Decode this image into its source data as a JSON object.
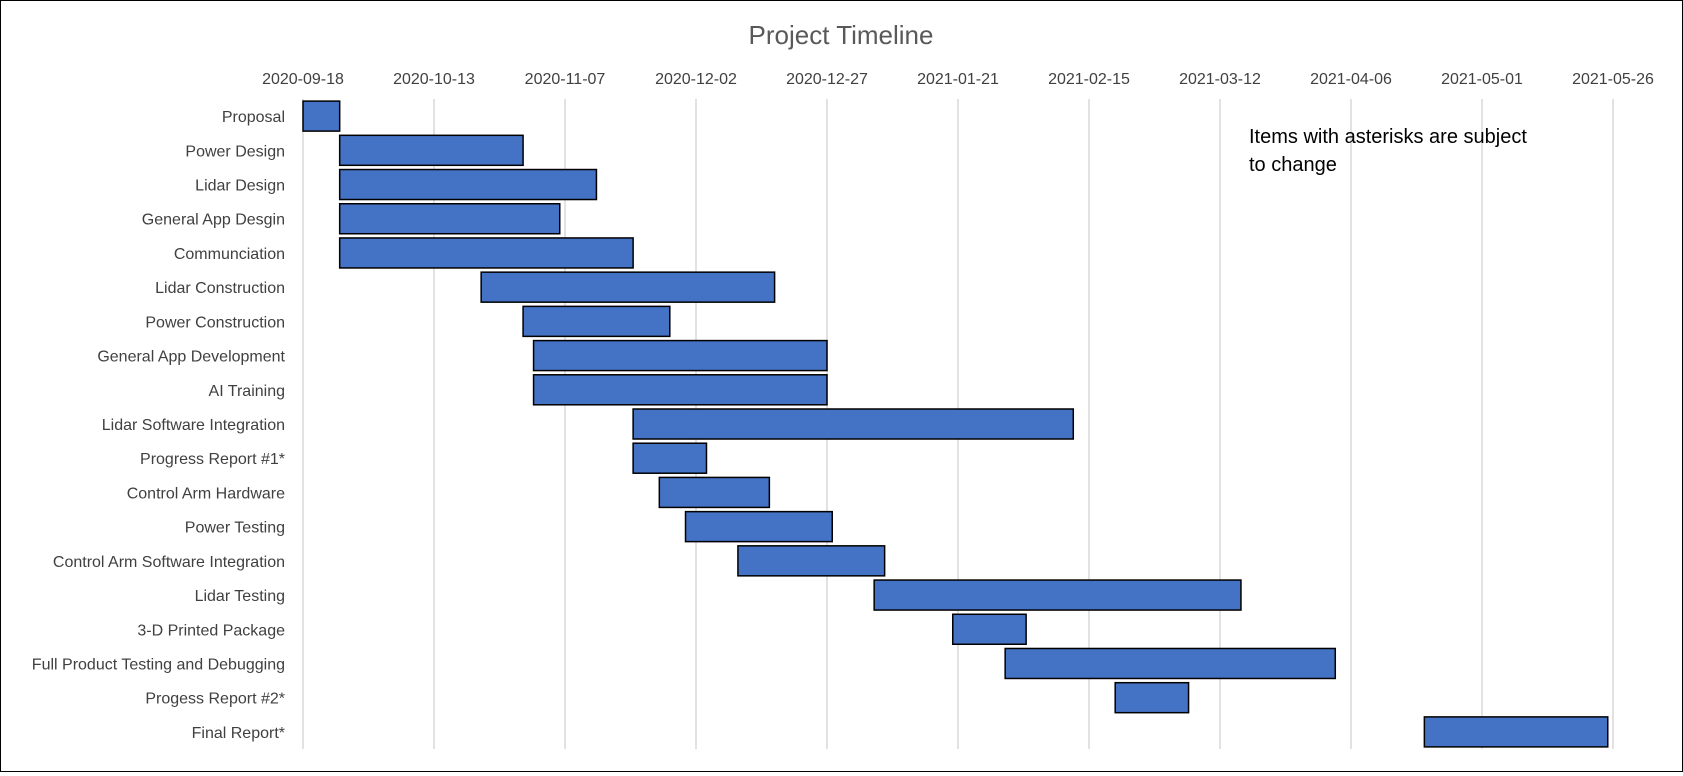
{
  "chart_data": {
    "type": "bar",
    "orientation": "horizontal",
    "style": "gantt",
    "title": "Project Timeline",
    "annotation": "Items with asterisks are subject to change",
    "x_axis": {
      "type": "date",
      "position": "top",
      "range": [
        "2020-09-18",
        "2021-05-26"
      ],
      "ticks": [
        "2020-09-18",
        "2020-10-13",
        "2020-11-07",
        "2020-12-02",
        "2020-12-27",
        "2021-01-21",
        "2021-02-15",
        "2021-03-12",
        "2021-04-06",
        "2021-05-01",
        "2021-05-26"
      ]
    },
    "grid": true,
    "bar_color": "#4472c4",
    "tasks": [
      {
        "name": "Proposal",
        "start": "2020-09-18",
        "end": "2020-09-25"
      },
      {
        "name": "Power Design",
        "start": "2020-09-25",
        "end": "2020-10-30"
      },
      {
        "name": "Lidar Design ",
        "start": "2020-09-25",
        "end": "2020-11-13"
      },
      {
        "name": "General App Desgin",
        "start": "2020-09-25",
        "end": "2020-11-06"
      },
      {
        "name": "Communciation",
        "start": "2020-09-25",
        "end": "2020-11-20"
      },
      {
        "name": "Lidar Construction",
        "start": "2020-10-22",
        "end": "2020-12-17"
      },
      {
        "name": "Power Construction",
        "start": "2020-10-30",
        "end": "2020-11-27"
      },
      {
        "name": "General App Development",
        "start": "2020-11-01",
        "end": "2020-12-27"
      },
      {
        "name": "AI Training ",
        "start": "2020-11-01",
        "end": "2020-12-27"
      },
      {
        "name": "Lidar Software Integration",
        "start": "2020-11-20",
        "end": "2021-02-12"
      },
      {
        "name": "Progress Report #1*",
        "start": "2020-11-20",
        "end": "2020-12-04"
      },
      {
        "name": "Control Arm Hardware ",
        "start": "2020-11-25",
        "end": "2020-12-16"
      },
      {
        "name": "Power Testing",
        "start": "2020-11-30",
        "end": "2020-12-28"
      },
      {
        "name": "Control Arm Software Integration",
        "start": "2020-12-10",
        "end": "2021-01-07"
      },
      {
        "name": "Lidar Testing",
        "start": "2021-01-05",
        "end": "2021-03-16"
      },
      {
        "name": "3-D Printed Package",
        "start": "2021-01-20",
        "end": "2021-02-03"
      },
      {
        "name": "Full Product Testing and Debugging",
        "start": "2021-01-30",
        "end": "2021-04-03"
      },
      {
        "name": "Progess Report #2*",
        "start": "2021-02-20",
        "end": "2021-03-06"
      },
      {
        "name": "Final Report*",
        "start": "2021-04-20",
        "end": "2021-05-25"
      }
    ]
  }
}
